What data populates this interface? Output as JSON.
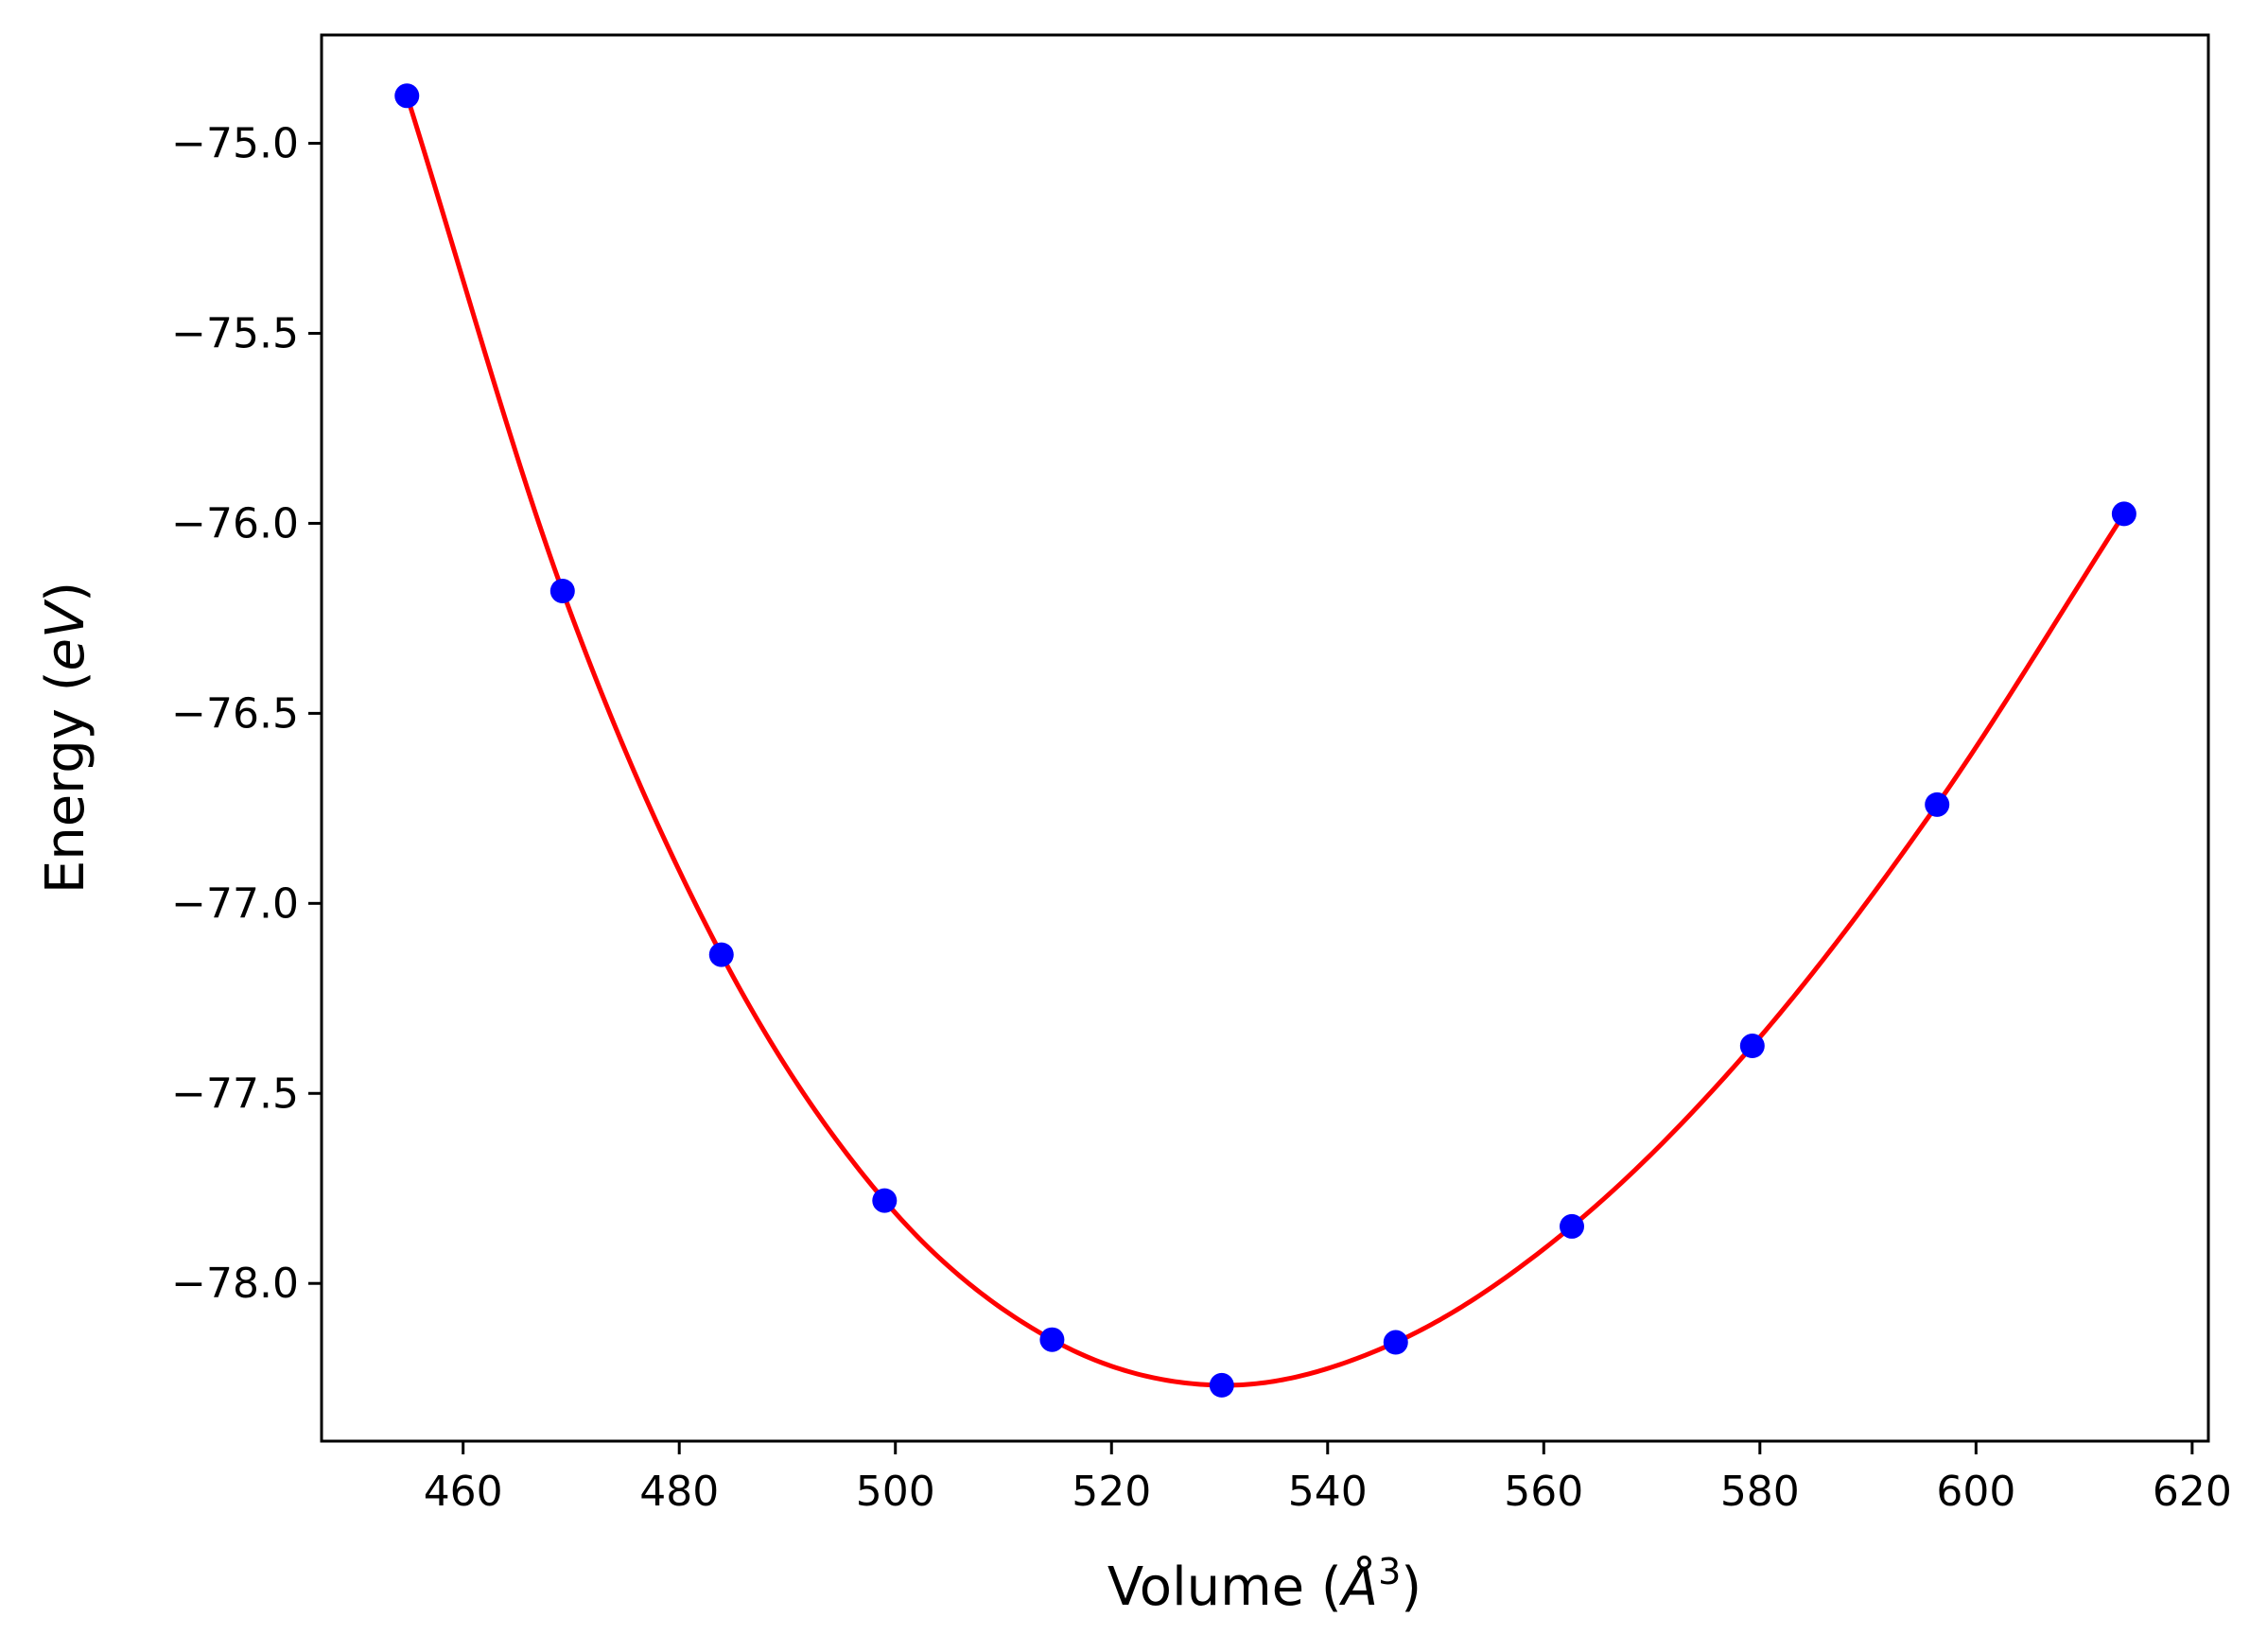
{
  "chart_data": {
    "type": "scatter",
    "xlabel": "Volume (Å³)",
    "ylabel": "Energy (eV)",
    "xlim": [
      446.9,
      621.5
    ],
    "ylim": [
      -78.415,
      -74.715
    ],
    "x_ticks": [
      460,
      480,
      500,
      520,
      540,
      560,
      580,
      600,
      620
    ],
    "x_tick_labels": [
      "460",
      "480",
      "500",
      "520",
      "540",
      "560",
      "580",
      "600",
      "620"
    ],
    "y_ticks": [
      -75.0,
      -75.5,
      -76.0,
      -76.5,
      -77.0,
      -77.5,
      -78.0
    ],
    "y_tick_labels": [
      "−75.0",
      "−75.5",
      "−76.0",
      "−76.5",
      "−77.0",
      "−77.5",
      "−78.0"
    ],
    "grid": false,
    "series": [
      {
        "kind": "points",
        "color": "#0000ff",
        "x": [
          454.8,
          469.2,
          483.9,
          499.0,
          514.5,
          530.2,
          546.3,
          562.6,
          579.3,
          596.4,
          613.7
        ],
        "y": [
          -74.875,
          -76.178,
          -77.135,
          -77.782,
          -78.148,
          -78.268,
          -78.155,
          -77.85,
          -77.375,
          -76.74,
          -75.975
        ]
      },
      {
        "kind": "fit-line",
        "color": "#ff0000",
        "x": [
          454.8,
          469.2,
          483.9,
          499.0,
          514.5,
          530.2,
          546.3,
          562.6,
          579.3,
          596.4,
          613.7
        ],
        "y": [
          -74.875,
          -76.178,
          -77.135,
          -77.782,
          -78.148,
          -78.268,
          -78.155,
          -77.85,
          -77.375,
          -76.74,
          -75.975
        ]
      }
    ]
  },
  "labels": {
    "x_prefix": "Volume (",
    "x_symbol": "Å",
    "x_power": "3",
    "x_suffix": ")",
    "y_prefix": "Energy (",
    "y_symbol": "eV",
    "y_suffix": ")"
  }
}
